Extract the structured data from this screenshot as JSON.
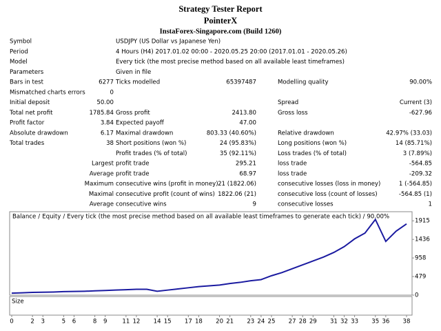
{
  "header": {
    "title": "Strategy Tester Report",
    "expert": "PointerX",
    "server": "InstaForex-Singapore.com  (Build 1260)"
  },
  "table": {
    "rows": [
      [
        "Symbol",
        null,
        "USDJPY (US Dollar vs Japanese Yen)"
      ],
      [
        "Period",
        null,
        "4 Hours (H4) 2017.01.02 00:00 - 2020.05.25 20:00 (2017.01.01 - 2020.05.26)"
      ],
      [
        "Model",
        null,
        "Every tick (the most precise method based on all available least timeframes)"
      ],
      [
        "Parameters",
        null,
        "Given in file"
      ],
      [
        "Bars in test",
        "6277",
        "Ticks modelled",
        "65397487",
        "Modelling quality",
        "90.00%"
      ],
      [
        "Mismatched charts errors",
        "0"
      ],
      [
        "Initial deposit",
        "50.00",
        null,
        null,
        "Spread",
        "Current (3)"
      ],
      [
        "Total net profit",
        "1785.84",
        "Gross profit",
        "2413.80",
        "Gross loss",
        "-627.96"
      ],
      [
        "Profit factor",
        "3.84",
        "Expected payoff",
        "47.00"
      ],
      [
        "Absolute drawdown",
        "6.17",
        "Maximal drawdown",
        "803.33 (40.60%)",
        "Relative drawdown",
        "42.97% (33.03)"
      ],
      [
        "Total trades",
        "38",
        "Short positions (won %)",
        "24 (95.83%)",
        "Long positions (won %)",
        "14 (85.71%)"
      ],
      [
        null,
        null,
        "Profit trades (% of total)",
        "35 (92.11%)",
        "Loss trades (% of total)",
        "3 (7.89%)"
      ],
      [
        null,
        "Largest",
        "profit trade",
        "295.21",
        "loss trade",
        "-564.85"
      ],
      [
        null,
        "Average",
        "profit trade",
        "68.97",
        "loss trade",
        "-209.32"
      ],
      [
        null,
        "Maximum",
        "consecutive wins (profit in money)",
        "21 (1822.06)",
        "consecutive losses (loss in money)",
        "1 (-564.85)"
      ],
      [
        null,
        "Maximal",
        "consecutive profit (count of wins)",
        "1822.06 (21)",
        "consecutive loss (count of losses)",
        "-564.85 (1)"
      ],
      [
        null,
        "Average",
        "consecutive wins",
        "9",
        "consecutive losses",
        "1"
      ]
    ]
  },
  "chart_data": {
    "type": "line",
    "legend": [
      {
        "name": "Balance",
        "color": "#0000ff"
      },
      {
        "name": "Equity",
        "color": "#00a000"
      }
    ],
    "separator": "/",
    "note": "Every tick (the most precise method based on all available least timeframes to generate each tick) / 90.00%",
    "x": [
      0,
      1,
      2,
      3,
      4,
      5,
      6,
      7,
      8,
      9,
      10,
      11,
      12,
      13,
      14,
      15,
      16,
      17,
      18,
      19,
      20,
      21,
      22,
      23,
      24,
      25,
      26,
      27,
      28,
      29,
      30,
      31,
      32,
      33,
      34,
      35,
      36,
      37,
      38
    ],
    "series": [
      {
        "name": "Balance",
        "color": "#1a1aa0",
        "values": [
          50,
          60,
          70,
          75,
          80,
          90,
          95,
          100,
          110,
          120,
          130,
          140,
          150,
          150,
          100,
          130,
          160,
          190,
          220,
          240,
          260,
          300,
          330,
          370,
          400,
          500,
          580,
          680,
          780,
          880,
          980,
          1100,
          1250,
          1450,
          1600,
          1950,
          1385,
          1650,
          1836
        ]
      }
    ],
    "xlim": [
      -0.2,
      38.5
    ],
    "ylim": [
      0,
      2150
    ],
    "yticks": [
      0,
      479,
      958,
      1436,
      1915
    ],
    "xticks": [
      0,
      2,
      3,
      5,
      6,
      8,
      9,
      11,
      12,
      14,
      15,
      17,
      18,
      20,
      21,
      23,
      24,
      25,
      27,
      28,
      29,
      31,
      32,
      33,
      35,
      36,
      38
    ],
    "size_label": "Size"
  }
}
